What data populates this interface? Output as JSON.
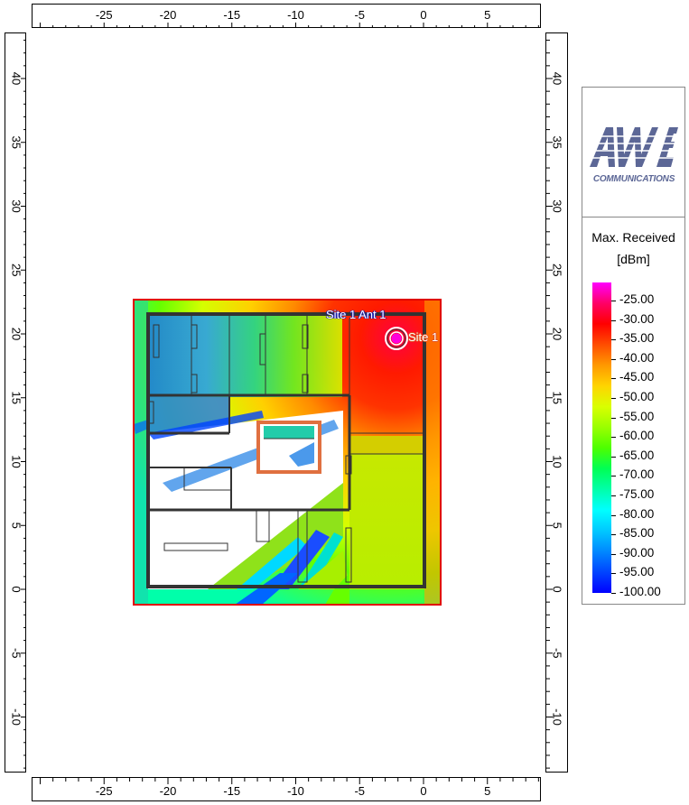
{
  "ruler": {
    "x_ticks": [
      "-25",
      "-20",
      "-15",
      "-10",
      "-5",
      "0",
      "5"
    ],
    "y_ticks": [
      "40",
      "35",
      "30",
      "25",
      "20",
      "15",
      "10",
      "5",
      "0",
      "-5",
      "-10"
    ]
  },
  "map": {
    "site_label": "Site 1",
    "antenna_label": "Site 1 Ant 1"
  },
  "legend": {
    "brand_mark": "AWE",
    "brand_sub": "COMMUNICATIONS",
    "title": "Max. Received",
    "unit": "[dBm]",
    "levels": [
      "-25.00",
      "-30.00",
      "-35.00",
      "-40.00",
      "-45.00",
      "-50.00",
      "-55.00",
      "-60.00",
      "-65.00",
      "-70.00",
      "-75.00",
      "-80.00",
      "-85.00",
      "-90.00",
      "-95.00",
      "-100.00"
    ],
    "colors": [
      "#ff00ff",
      "#ff0066",
      "#ff0000",
      "#ff4d00",
      "#ff9900",
      "#ffd400",
      "#d9ff00",
      "#99ff00",
      "#4dff00",
      "#00ff55",
      "#00ffaa",
      "#00ffff",
      "#00c8ff",
      "#0088ff",
      "#0044ff",
      "#0000ff"
    ]
  }
}
